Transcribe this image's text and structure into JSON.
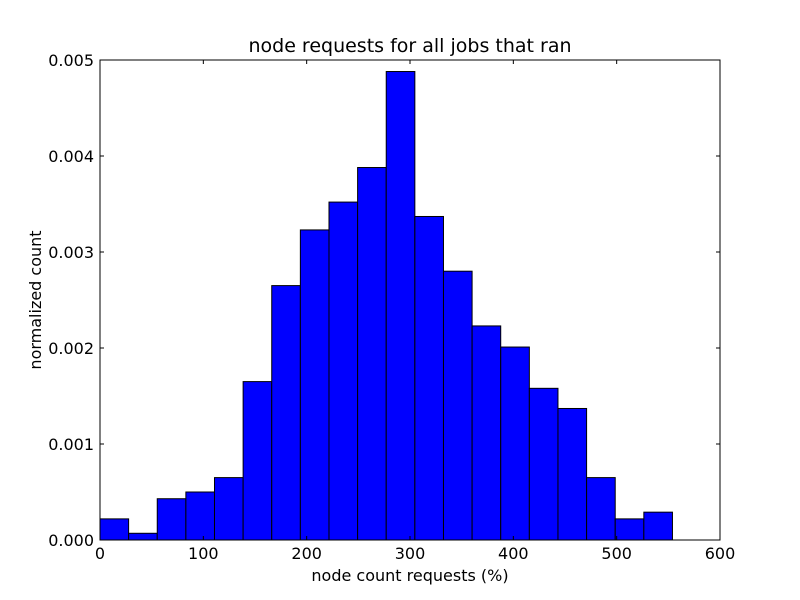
{
  "chart_data": {
    "type": "bar",
    "title": "node requests for all jobs that ran",
    "xlabel": "node count requests (%)",
    "ylabel": "normalized count",
    "xlim": [
      0,
      600
    ],
    "ylim": [
      0,
      0.005
    ],
    "bar_color": "#0000ff",
    "x_ticks": [
      0,
      100,
      200,
      300,
      400,
      500,
      600
    ],
    "x_tick_labels": [
      "0",
      "100",
      "200",
      "300",
      "400",
      "500",
      "600"
    ],
    "y_ticks": [
      0,
      0.001,
      0.002,
      0.003,
      0.004,
      0.005
    ],
    "y_tick_labels": [
      "0.000",
      "0.001",
      "0.002",
      "0.003",
      "0.004",
      "0.005"
    ],
    "bin_width": 27.7,
    "bins": [
      {
        "start": 0.0,
        "value": 0.00022
      },
      {
        "start": 27.7,
        "value": 7e-05
      },
      {
        "start": 55.4,
        "value": 0.00043
      },
      {
        "start": 83.1,
        "value": 0.0005
      },
      {
        "start": 110.8,
        "value": 0.00065
      },
      {
        "start": 138.5,
        "value": 0.00165
      },
      {
        "start": 166.2,
        "value": 0.00265
      },
      {
        "start": 193.9,
        "value": 0.00323
      },
      {
        "start": 221.6,
        "value": 0.00352
      },
      {
        "start": 249.3,
        "value": 0.00388
      },
      {
        "start": 277.0,
        "value": 0.00488
      },
      {
        "start": 304.7,
        "value": 0.00337
      },
      {
        "start": 332.4,
        "value": 0.0028
      },
      {
        "start": 360.1,
        "value": 0.00223
      },
      {
        "start": 387.8,
        "value": 0.00201
      },
      {
        "start": 415.5,
        "value": 0.00158
      },
      {
        "start": 443.2,
        "value": 0.00137
      },
      {
        "start": 470.9,
        "value": 0.00065
      },
      {
        "start": 498.6,
        "value": 0.00022
      },
      {
        "start": 526.3,
        "value": 0.00029
      }
    ]
  }
}
